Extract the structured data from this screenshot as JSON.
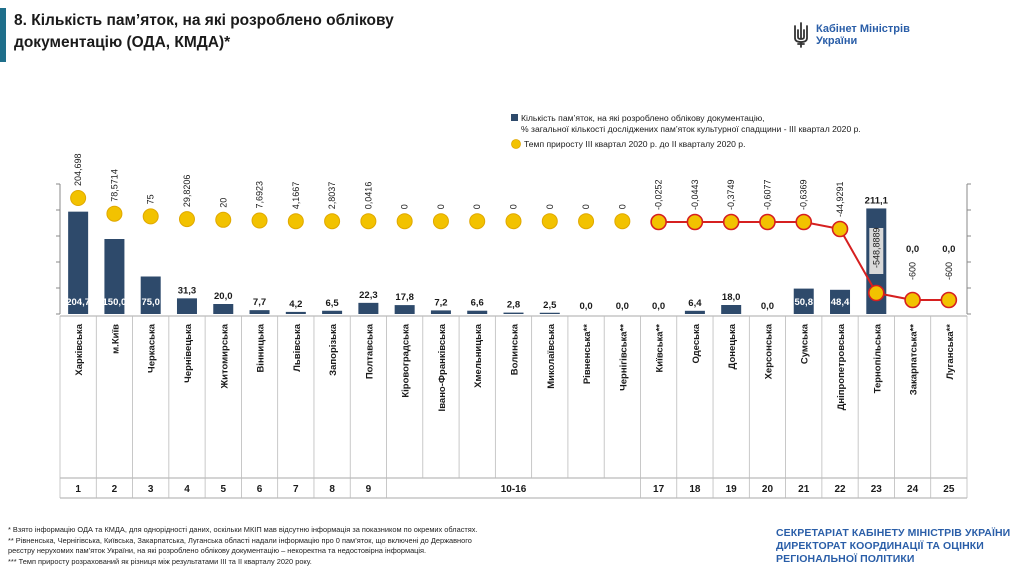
{
  "header": {
    "title_line1": "8. Кількість пам’яток, на які розроблено облікову",
    "title_line2": "документацію (ОДА, КМДА)*",
    "accent_color": "#1f6f8b"
  },
  "logo": {
    "icon": "trident-icon",
    "line1": "Кабінет Міністрів",
    "line2": "України",
    "color": "#2a5ea8"
  },
  "chart_data": {
    "type": "bar",
    "legend": {
      "bar_line1": "Кількість пам’яток, на які розроблено облікову документацію,",
      "bar_line2": "% загальної кількості досліджених пам’яток культурної спадщини - ІІІ квартал 2020 р.",
      "dot": "Темп приросту ІІІ квартал 2020 р. до ІІ кварталу 2020 р."
    },
    "categories": [
      "Харківська",
      "м.Київ",
      "Черкаська",
      "Чернівецька",
      "Житомирська",
      "Вінницька",
      "Львівська",
      "Запорізька",
      "Полтавська",
      "Кіровоградська",
      "Івано-Франківська",
      "Хмельницька",
      "Волинська",
      "Миколаївська",
      "Рівненська**",
      "Чернігівська**",
      "Київська**",
      "Одеська",
      "Донецька",
      "Херсонська",
      "Сумська",
      "Дніпропетровська",
      "Тернопільська",
      "Закарпатська**",
      "Луганська**"
    ],
    "bar_values": [
      204.7,
      150.0,
      75.0,
      31.3,
      20.0,
      7.7,
      4.2,
      6.5,
      22.3,
      17.8,
      7.2,
      6.6,
      2.8,
      2.5,
      0.0,
      0.0,
      0.0,
      6.4,
      18.0,
      0.0,
      50.8,
      48.4,
      211.1,
      0.0,
      0.0
    ],
    "bar_labels": [
      "204,7",
      "150,0",
      "75,0",
      "31,3",
      "20,0",
      "7,7",
      "4,2",
      "6,5",
      "22,3",
      "17,8",
      "7,2",
      "6,6",
      "2,8",
      "2,5",
      "0,0",
      "0,0",
      "0,0",
      "6,4",
      "18,0",
      "0,0",
      "50,8",
      "48,4",
      "211,1",
      "0,0",
      "0,0"
    ],
    "growth_values": [
      204.698,
      78.5714,
      75,
      29.8206,
      20,
      7.6923,
      4.1667,
      2.8037,
      0.0416,
      0,
      0,
      0,
      0,
      0,
      0,
      0,
      -0.0252,
      -0.0443,
      -0.3749,
      -0.6077,
      -0.6369,
      -44.9291,
      -548.8889,
      -600,
      -600
    ],
    "growth_labels": [
      "204,698",
      "78,5714",
      "75",
      "29,8206",
      "20",
      "7,6923",
      "4,1667",
      "2,8037",
      "0,0416",
      "0",
      "0",
      "0",
      "0",
      "0",
      "0",
      "0",
      "-0,0252",
      "-0,0443",
      "-0,3749",
      "-0,6077",
      "-0,6369",
      "-44,9291",
      "-548,8889",
      "-600",
      "-600"
    ],
    "ranks": [
      "1",
      "2",
      "3",
      "4",
      "5",
      "6",
      "7",
      "8",
      "9",
      "10-16",
      "17",
      "18",
      "19",
      "20",
      "21",
      "22",
      "23",
      "24",
      "25"
    ],
    "colors": {
      "bar": "#2e4a6b",
      "dot": "#f2c200",
      "dot_edge": "#e0a800",
      "line": "#d62020",
      "dot_edge_red": "#d62020"
    }
  },
  "footer": {
    "note1": "*     Взято інформацію ОДА та КМДА, для однорідності даних, оскільки МКІП мав відсутню інформація за показником по окремих областях.",
    "note2": "**   Рівненська, Чернігівська, Київська, Закарпатська, Луганська області надали інформацію про 0 пам’яток, що включені до Державного",
    "note3": "реєстру нерухомих пам’яток України, на які розроблено облікову документацію – некоректна та недостовірна інформація.",
    "note4": "***  Темп приросту розрахований як різниця між результатами ІІІ та ІІ кварталу 2020 року.",
    "org_line1": "СЕКРЕТАРІАТ КАБІНЕТУ МІНІСТРІВ УКРАЇНИ",
    "org_line2": "ДИРЕКТОРАТ КООРДИНАЦІЇ ТА ОЦІНКИ",
    "org_line3": "РЕГІОНАЛЬНОЇ ПОЛІТИКИ",
    "org_color": "#2a5ea8"
  }
}
